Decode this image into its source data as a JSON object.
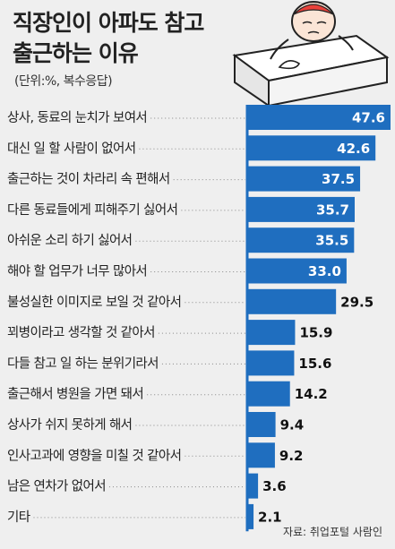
{
  "title_line1": "직장인이 아파도 참고",
  "title_line2": "출근하는 이유",
  "unit_note": "(단위:%, 복수응답)",
  "source": "자료: 취업포털 사람인",
  "colors": {
    "bar": "#1f6ebf",
    "background": "#efefef"
  },
  "chart_data": {
    "type": "bar",
    "orientation": "horizontal",
    "categories": [
      "상사, 동료의 눈치가 보여서",
      "대신 일 할 사람이 없어서",
      "출근하는 것이 차라리 속 편해서",
      "다른 동료들에게 피해주기 싫어서",
      "아쉬운 소리 하기 싫어서",
      "해야 할 업무가 너무 많아서",
      "불성실한 이미지로 보일 것 같아서",
      "꾀병이라고 생각할 것 같아서",
      "다들 참고 일 하는 분위기라서",
      "출근해서 병원을 가면 돼서",
      "상사가 쉬지 못하게 해서",
      "인사고과에 영향을 미칠 것 같아서",
      "남은 연차가 없어서",
      "기타"
    ],
    "values": [
      47.6,
      42.6,
      37.5,
      35.7,
      35.5,
      33.0,
      29.5,
      15.9,
      15.6,
      14.2,
      9.4,
      9.2,
      3.6,
      2.1
    ],
    "value_labels": [
      "47.6",
      "42.6",
      "37.5",
      "35.7",
      "35.5",
      "33.0",
      "29.5",
      "15.9",
      "15.6",
      "14.2",
      "9.4",
      "9.2",
      "3.6",
      "2.1"
    ],
    "xlim": [
      0,
      47.6
    ]
  }
}
